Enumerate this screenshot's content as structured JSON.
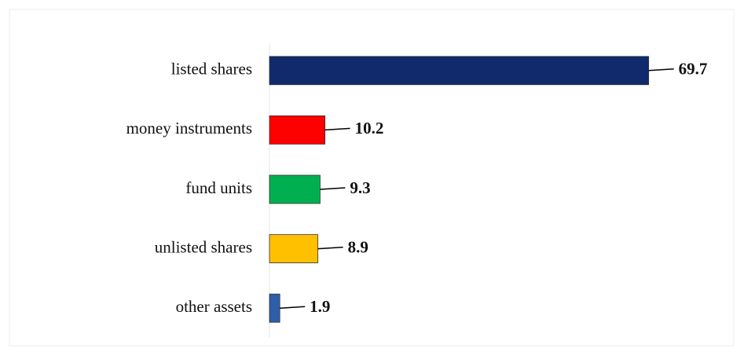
{
  "chart_data": {
    "type": "barh",
    "categories": [
      "listed shares",
      "money instruments",
      "fund units",
      "unlisted shares",
      "other assets"
    ],
    "values": [
      69.7,
      10.2,
      9.3,
      8.9,
      1.9
    ],
    "colors": [
      "#102a6b",
      "#ff0000",
      "#00b050",
      "#ffc000",
      "#2e5ea8"
    ],
    "xlim": [
      0,
      80
    ]
  }
}
